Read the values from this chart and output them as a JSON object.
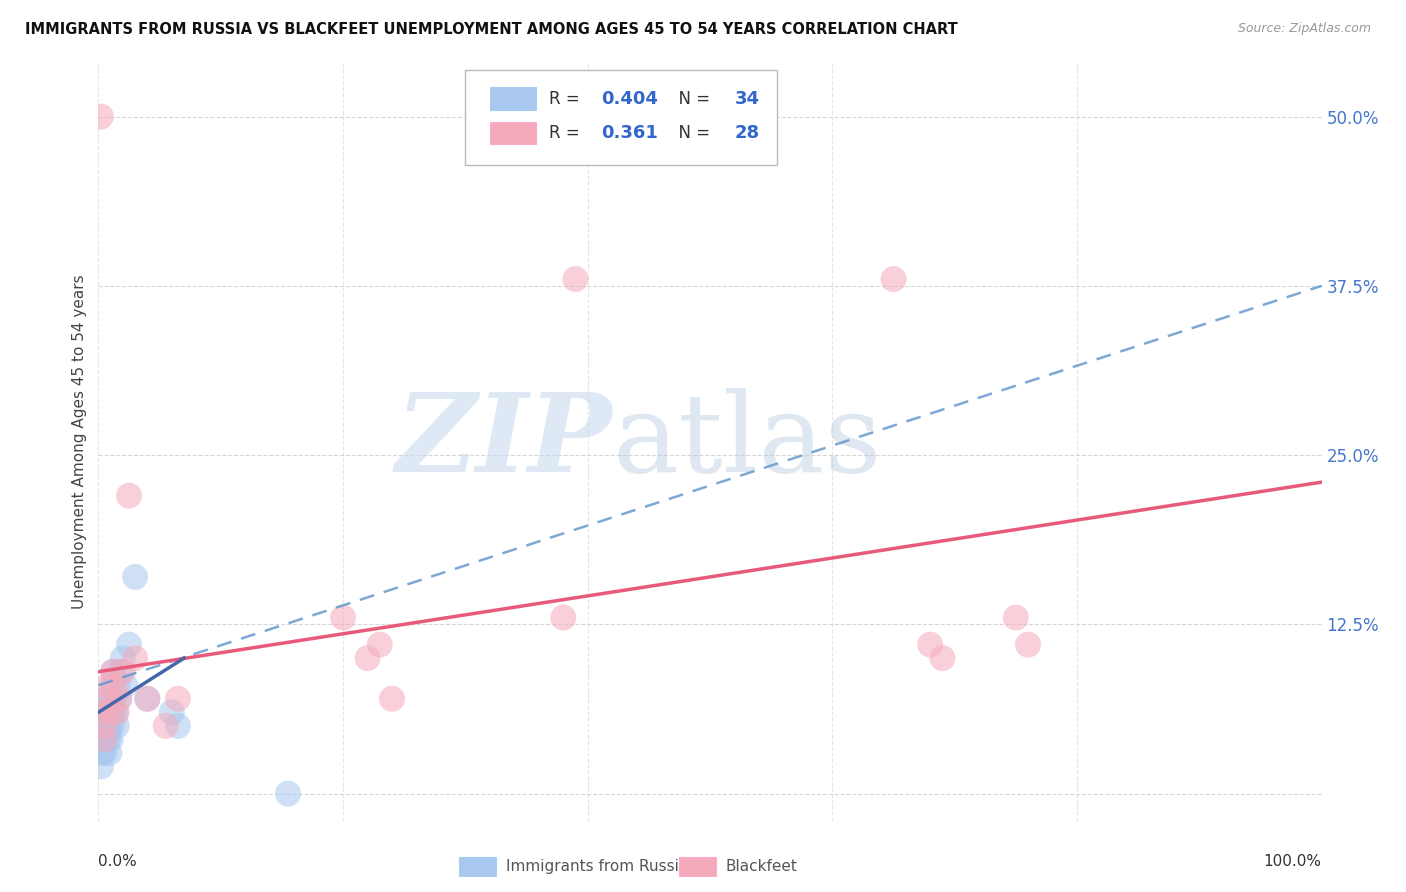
{
  "title": "IMMIGRANTS FROM RUSSIA VS BLACKFEET UNEMPLOYMENT AMONG AGES 45 TO 54 YEARS CORRELATION CHART",
  "source": "Source: ZipAtlas.com",
  "ylabel": "Unemployment Among Ages 45 to 54 years",
  "ytick_labels": [
    "",
    "12.5%",
    "25.0%",
    "37.5%",
    "50.0%"
  ],
  "ytick_vals": [
    0.0,
    0.125,
    0.25,
    0.375,
    0.5
  ],
  "xlim": [
    0.0,
    1.0
  ],
  "ylim": [
    -0.02,
    0.54
  ],
  "legend_R_blue": "0.404",
  "legend_N_blue": "34",
  "legend_R_pink": "0.361",
  "legend_N_pink": "28",
  "blue_color": "#A8C8F0",
  "pink_color": "#F5AABB",
  "trendline_blue_color": "#6699CC",
  "trendline_blue_solid_color": "#4466AA",
  "trendline_pink_color": "#E85A7A",
  "grid_color": "#CCCCCC",
  "blue_scatter_x": [
    0.002,
    0.003,
    0.004,
    0.004,
    0.005,
    0.005,
    0.006,
    0.006,
    0.007,
    0.007,
    0.008,
    0.008,
    0.009,
    0.009,
    0.01,
    0.01,
    0.011,
    0.011,
    0.012,
    0.012,
    0.013,
    0.014,
    0.015,
    0.016,
    0.017,
    0.018,
    0.02,
    0.022,
    0.025,
    0.03,
    0.04,
    0.06,
    0.065,
    0.155
  ],
  "blue_scatter_y": [
    0.02,
    0.03,
    0.04,
    0.06,
    0.03,
    0.05,
    0.04,
    0.06,
    0.05,
    0.07,
    0.04,
    0.06,
    0.03,
    0.05,
    0.04,
    0.07,
    0.05,
    0.08,
    0.06,
    0.09,
    0.07,
    0.06,
    0.05,
    0.08,
    0.07,
    0.09,
    0.1,
    0.08,
    0.11,
    0.16,
    0.07,
    0.06,
    0.05,
    0.0
  ],
  "pink_scatter_x": [
    0.002,
    0.004,
    0.005,
    0.007,
    0.008,
    0.01,
    0.012,
    0.013,
    0.015,
    0.017,
    0.02,
    0.025,
    0.03,
    0.04,
    0.055,
    0.065,
    0.2,
    0.22,
    0.23,
    0.24,
    0.38,
    0.39,
    0.65,
    0.68,
    0.69,
    0.75,
    0.76,
    0.005
  ],
  "pink_scatter_y": [
    0.5,
    0.06,
    0.05,
    0.07,
    0.08,
    0.06,
    0.09,
    0.08,
    0.06,
    0.07,
    0.09,
    0.22,
    0.1,
    0.07,
    0.05,
    0.07,
    0.13,
    0.1,
    0.11,
    0.07,
    0.13,
    0.38,
    0.38,
    0.11,
    0.1,
    0.13,
    0.11,
    0.04
  ],
  "blue_trendline_dashed_x0": 0.0,
  "blue_trendline_dashed_y0": 0.08,
  "blue_trendline_dashed_x1": 1.0,
  "blue_trendline_dashed_y1": 0.375,
  "blue_trendline_solid_x0": 0.0,
  "blue_trendline_solid_y0": 0.06,
  "blue_trendline_solid_x1": 0.07,
  "blue_trendline_solid_y1": 0.1,
  "pink_trendline_x0": 0.0,
  "pink_trendline_y0": 0.09,
  "pink_trendline_x1": 1.0,
  "pink_trendline_y1": 0.23
}
